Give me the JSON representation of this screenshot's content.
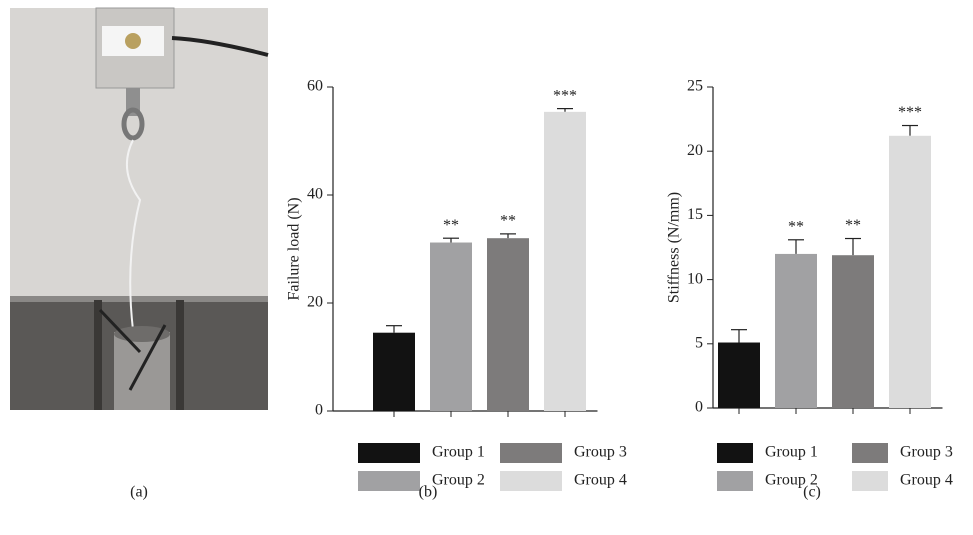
{
  "photo": {
    "label": "(a)"
  },
  "chart_data": [
    {
      "type": "bar",
      "panel_label": "(b)",
      "y_label": "Failure load (N)",
      "categories": [
        "Group 1",
        "Group 2",
        "Group 3",
        "Group 4"
      ],
      "values": [
        14.5,
        31.2,
        32.0,
        55.4
      ],
      "errors": [
        1.3,
        0.8,
        0.8,
        0.6
      ],
      "annotations": [
        null,
        "**",
        "**",
        "***"
      ],
      "colors": [
        "#121212",
        "#a1a1a3",
        "#7d7b7b",
        "#dcdcdc"
      ],
      "ylim": [
        0,
        60
      ],
      "yticks": [
        0,
        20,
        40,
        60
      ],
      "grid": false
    },
    {
      "type": "bar",
      "panel_label": "(c)",
      "y_label": "Stiffness (N/mm)",
      "categories": [
        "Group 1",
        "Group 2",
        "Group 3",
        "Group 4"
      ],
      "values": [
        5.1,
        12.0,
        11.9,
        21.2
      ],
      "errors": [
        1.0,
        1.1,
        1.3,
        0.8
      ],
      "annotations": [
        null,
        "**",
        "**",
        "***"
      ],
      "colors": [
        "#121212",
        "#a1a1a3",
        "#7d7b7b",
        "#dcdcdc"
      ],
      "ylim": [
        0,
        25
      ],
      "yticks": [
        0,
        5,
        10,
        15,
        20,
        25
      ],
      "grid": false
    }
  ]
}
